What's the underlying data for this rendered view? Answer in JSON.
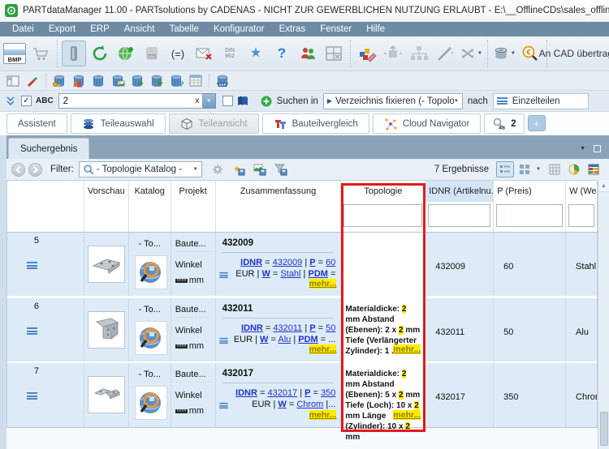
{
  "window": {
    "title": "PARTdataManager 11.00 - PARTsolutions by CADENAS - NICHT ZUR GEWERBLICHEN NUTZUNG ERLAUBT - E:\\__OfflineCDs\\sales_offlinecd-...tartup_assistant\\st"
  },
  "menu": {
    "items": [
      "Datei",
      "Export",
      "ERP",
      "Ansicht",
      "Tabelle",
      "Konfigurator",
      "Extras",
      "Fenster",
      "Hilfe"
    ]
  },
  "toolbar": {
    "bmp": "BMP",
    "din_line1": "DIN",
    "din_line2": "962",
    "equals": "(=)",
    "help": "?",
    "an_cad": "An CAD übertragen",
    "sap": "SAP"
  },
  "glyphs": {
    "dropdown": "▼",
    "up": "▲",
    "check": "✓",
    "play": "▶"
  },
  "search": {
    "abc": "ABC",
    "query": "2",
    "clear": "x",
    "suchen_in": "Suchen in",
    "verzeichnis": "Verzeichnis fixieren (- Topologie Katalog",
    "nach": "nach",
    "ziel": "Einzelteilen"
  },
  "tabs": {
    "assistent": "Assistent",
    "teileauswahl": "Teileauswahl",
    "teileansicht": "Teileansicht",
    "bauteilvergleich": "Bauteilvergleich",
    "cloud": "Cloud Navigator",
    "search_count": "2",
    "add": "+"
  },
  "results": {
    "tab": "Suchergebnis",
    "filter_label": "Filter:",
    "filter_value": "- Topologie Katalog -",
    "count": "7 Ergebnisse"
  },
  "table": {
    "headers": {
      "vorschau": "Vorschau",
      "katalog": "Katalog",
      "projekt": "Projekt",
      "zusammenfassung": "Zusammenfassung",
      "topologie": "Topologie",
      "idnr": "IDNR (Artikelnu...",
      "preis": "P (Preis)",
      "werkstoff": "W (We..."
    },
    "rows": [
      {
        "num": "5",
        "katalog": "- To...",
        "projekt_typ": "Baute...",
        "projekt_name": "Winkel",
        "unit": "mm",
        "title": "432009",
        "summary": [
          {
            "t": "IDNR",
            "s": "lb"
          },
          {
            "t": " = "
          },
          {
            "t": "432009",
            "s": "l"
          },
          {
            "t": " | "
          },
          {
            "t": "P",
            "s": "lb"
          },
          {
            "t": " = "
          },
          {
            "t": "60",
            "s": "l"
          },
          {
            "t": " EUR | "
          },
          {
            "t": "W",
            "s": "lb"
          },
          {
            "t": " = "
          },
          {
            "t": "Stahl",
            "s": "l"
          },
          {
            "t": " | "
          },
          {
            "t": "PDM",
            "s": "lb"
          },
          {
            "t": " = ..."
          }
        ],
        "summary_mehr": "mehr...",
        "topologie": [],
        "idnr": "432009",
        "preis": "60",
        "werkstoff": "Stahl"
      },
      {
        "num": "6",
        "katalog": "- To...",
        "projekt_typ": "Baute...",
        "projekt_name": "Winkel",
        "unit": "mm",
        "title": "432011",
        "summary": [
          {
            "t": "IDNR",
            "s": "lb"
          },
          {
            "t": " = "
          },
          {
            "t": "432011",
            "s": "l"
          },
          {
            "t": " | "
          },
          {
            "t": "P",
            "s": "lb"
          },
          {
            "t": " = "
          },
          {
            "t": "50",
            "s": "l"
          },
          {
            "t": " EUR | "
          },
          {
            "t": "W",
            "s": "lb"
          },
          {
            "t": " = "
          },
          {
            "t": "Alu",
            "s": "l"
          },
          {
            "t": " | "
          },
          {
            "t": "PDM",
            "s": "lb"
          },
          {
            "t": " = ..."
          }
        ],
        "summary_mehr": "mehr...",
        "topologie": [
          {
            "t": "Materialdicke: "
          },
          {
            "t": "2",
            "s": "m"
          },
          {
            "t": " mm Abstand (Ebenen): 2 x "
          },
          {
            "t": "2",
            "s": "m"
          },
          {
            "t": " mm Tiefe (Verlängerter Zylinder): 1 ..."
          }
        ],
        "topo_mehr": "mehr...",
        "idnr": "432011",
        "preis": "50",
        "werkstoff": "Alu"
      },
      {
        "num": "7",
        "katalog": "- To...",
        "projekt_typ": "Baute...",
        "projekt_name": "Winkel",
        "unit": "mm",
        "title": "432017",
        "summary": [
          {
            "t": "IDNR",
            "s": "lb"
          },
          {
            "t": " = "
          },
          {
            "t": "432017",
            "s": "l"
          },
          {
            "t": " | "
          },
          {
            "t": "P",
            "s": "lb"
          },
          {
            "t": " = "
          },
          {
            "t": "350",
            "s": "l"
          },
          {
            "t": " EUR | "
          },
          {
            "t": "W",
            "s": "lb"
          },
          {
            "t": " = "
          },
          {
            "t": "Chrom",
            "s": "l"
          },
          {
            "t": " |..."
          }
        ],
        "summary_mehr": "mehr...",
        "topologie": [
          {
            "t": "Materialdicke: "
          },
          {
            "t": "2",
            "s": "m"
          },
          {
            "t": " mm Abstand (Ebenen): 5 x "
          },
          {
            "t": "2",
            "s": "m"
          },
          {
            "t": " mm Tiefe (Loch): 10 x "
          },
          {
            "t": "2",
            "s": "m"
          },
          {
            "t": " mm Länge (Zylinder): 10 x "
          },
          {
            "t": "2",
            "s": "m"
          },
          {
            "t": " mm"
          }
        ],
        "topo_mehr": "mehr...",
        "idnr": "432017",
        "preis": "350",
        "werkstoff": "Chrom"
      }
    ]
  }
}
